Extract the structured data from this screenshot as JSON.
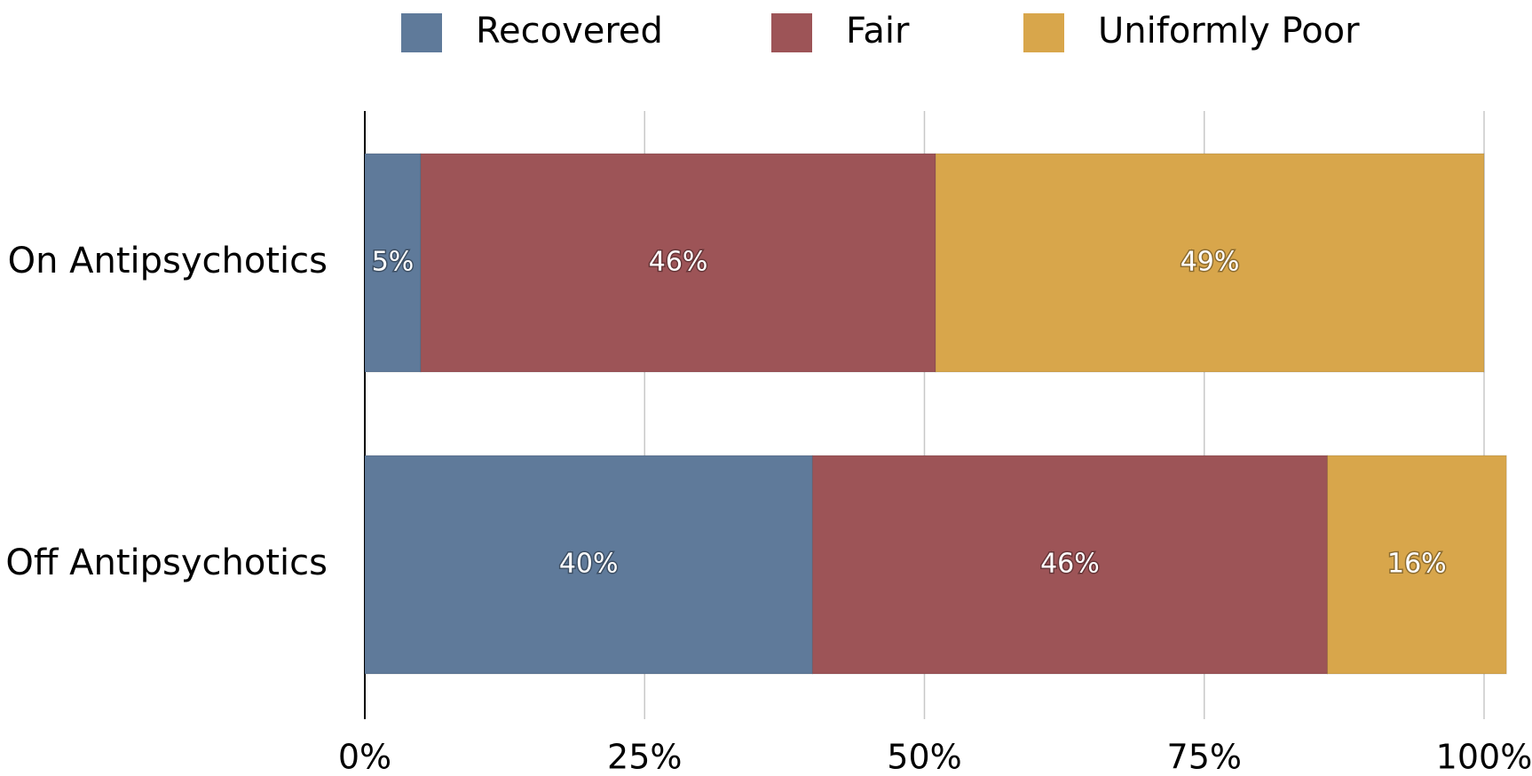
{
  "chart_data": {
    "type": "stacked-bar-horizontal",
    "categories": [
      "On Antipsychotics",
      "Off Antipsychotics"
    ],
    "series": [
      {
        "name": "Recovered",
        "color": "#5f7a9a",
        "values": [
          5,
          40
        ],
        "value_labels": [
          "5%",
          "40%"
        ]
      },
      {
        "name": "Fair",
        "color": "#9d5457",
        "values": [
          46,
          46
        ],
        "value_labels": [
          "46%",
          "46%"
        ]
      },
      {
        "name": "Uniformly Poor",
        "color": "#d8a64b",
        "values": [
          49,
          16
        ],
        "value_labels": [
          "49%",
          "16%"
        ]
      }
    ],
    "xlim": [
      0,
      100
    ],
    "xticks": [
      {
        "value": 0,
        "label": "0%"
      },
      {
        "value": 25,
        "label": "25%"
      },
      {
        "value": 50,
        "label": "50%"
      },
      {
        "value": 75,
        "label": "75%"
      },
      {
        "value": 100,
        "label": "100%"
      }
    ],
    "grid": true,
    "legend": "top"
  }
}
